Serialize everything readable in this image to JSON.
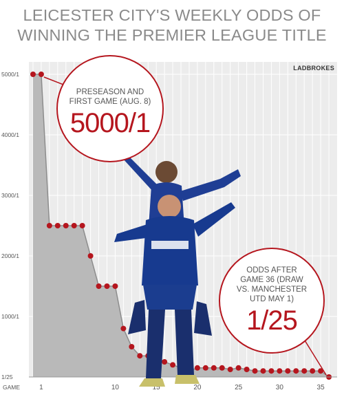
{
  "title_line1": "LEICESTER CITY'S WEEKLY ODDS OF",
  "title_line2": "WINNING THE PREMIER LEAGUE TITLE",
  "source": "LADBROKES",
  "callouts": {
    "preseason_text": "PRESEASON AND\nFIRST GAME (AUG. 8)",
    "preseason_value": "5000/1",
    "final_text": "ODDS AFTER\nGAME 36 (DRAW\nVS. MANCHESTER\nUTD MAY 1)",
    "final_value": "1/25"
  },
  "colors": {
    "accent": "#b5161e",
    "area": "#b9b9b9",
    "plot_bg": "#ececec",
    "grid": "#ffffff",
    "axis_text": "#555555"
  },
  "chart_data": {
    "type": "area",
    "title": "LEICESTER CITY'S WEEKLY ODDS OF WINNING THE PREMIER LEAGUE TITLE",
    "xlabel": "GAME",
    "ylabel": "",
    "x_ticks": [
      1,
      10,
      15,
      20,
      25,
      30,
      35
    ],
    "x_tick_labels": [
      "1",
      "10",
      "15",
      "20",
      "25",
      "30",
      "35"
    ],
    "y_ticks": [
      0.04,
      1000,
      2000,
      3000,
      4000,
      5000
    ],
    "y_tick_labels": [
      "1/25",
      "1000/1",
      "2000/1",
      "3000/1",
      "4000/1",
      "5000/1"
    ],
    "xlim": [
      -0.5,
      37
    ],
    "ylim": [
      0,
      5000
    ],
    "grid": true,
    "series": [
      {
        "x": [
          0,
          1,
          2,
          3,
          4,
          5,
          6,
          7,
          8,
          9,
          10,
          11,
          12,
          13,
          14,
          15,
          16,
          17,
          18,
          19,
          20,
          21,
          22,
          23,
          24,
          25,
          26,
          27,
          28,
          29,
          30,
          31,
          32,
          33,
          34,
          35,
          36
        ],
        "values": [
          5000,
          5000,
          2500,
          2500,
          2500,
          2500,
          2500,
          2000,
          1500,
          1500,
          1500,
          800,
          500,
          350,
          350,
          300,
          250,
          200,
          150,
          100,
          150,
          150,
          150,
          150,
          125,
          150,
          125,
          100,
          100,
          100,
          100,
          100,
          100,
          100,
          100,
          100,
          0.04
        ]
      }
    ]
  }
}
